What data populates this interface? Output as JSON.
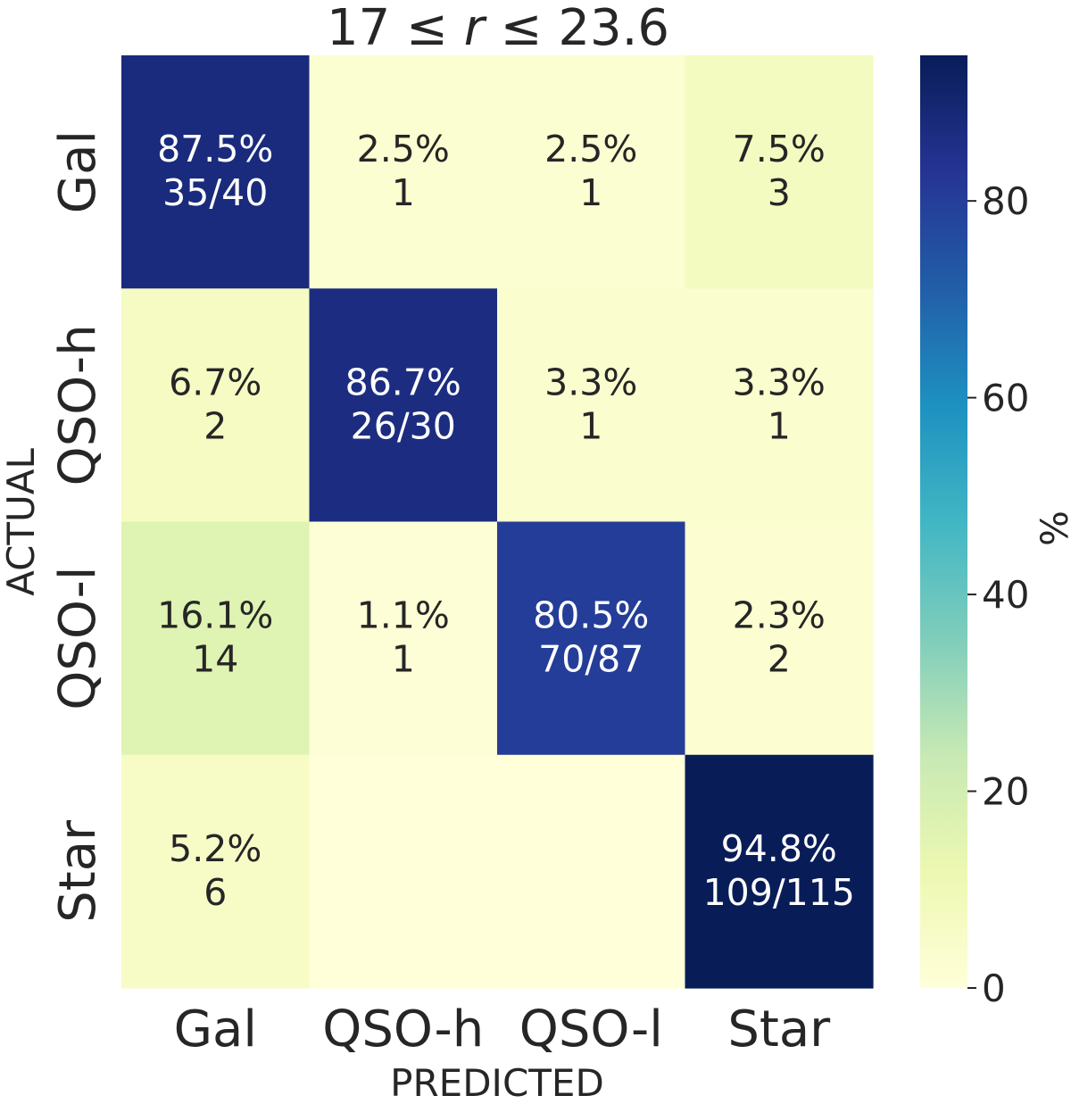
{
  "chart_data": {
    "type": "heatmap",
    "title": "17 ≤ r ≤ 23.6",
    "title_parts": {
      "left": "17 ≤ ",
      "var": "r",
      "right": " ≤ 23.6"
    },
    "xlabel": "PREDICTED",
    "ylabel": "ACTUAL",
    "x_categories": [
      "Gal",
      "QSO-h",
      "QSO-l",
      "Star"
    ],
    "y_categories": [
      "Gal",
      "QSO-h",
      "QSO-l",
      "Star"
    ],
    "values": [
      [
        87.5,
        2.5,
        2.5,
        7.5
      ],
      [
        6.7,
        86.7,
        3.3,
        3.3
      ],
      [
        16.1,
        1.1,
        80.5,
        2.3
      ],
      [
        5.2,
        0,
        0,
        94.8
      ]
    ],
    "cell_labels": [
      [
        [
          "87.5%",
          "35/40"
        ],
        [
          "2.5%",
          "1"
        ],
        [
          "2.5%",
          "1"
        ],
        [
          "7.5%",
          "3"
        ]
      ],
      [
        [
          "6.7%",
          "2"
        ],
        [
          "86.7%",
          "26/30"
        ],
        [
          "3.3%",
          "1"
        ],
        [
          "3.3%",
          "1"
        ]
      ],
      [
        [
          "16.1%",
          "14"
        ],
        [
          "1.1%",
          "1"
        ],
        [
          "80.5%",
          "70/87"
        ],
        [
          "2.3%",
          "2"
        ]
      ],
      [
        [
          "5.2%",
          "6"
        ],
        [
          "",
          ""
        ],
        [
          "",
          ""
        ],
        [
          "94.8%",
          "109/115"
        ]
      ]
    ],
    "colorbar": {
      "label": "%",
      "colormap": "YlGnBu",
      "vmin": 0,
      "vmax": 94.8,
      "ticks": [
        0,
        20,
        40,
        60,
        80
      ],
      "tick_labels": [
        "0",
        "20",
        "40",
        "60",
        "80"
      ]
    },
    "grid": false
  }
}
